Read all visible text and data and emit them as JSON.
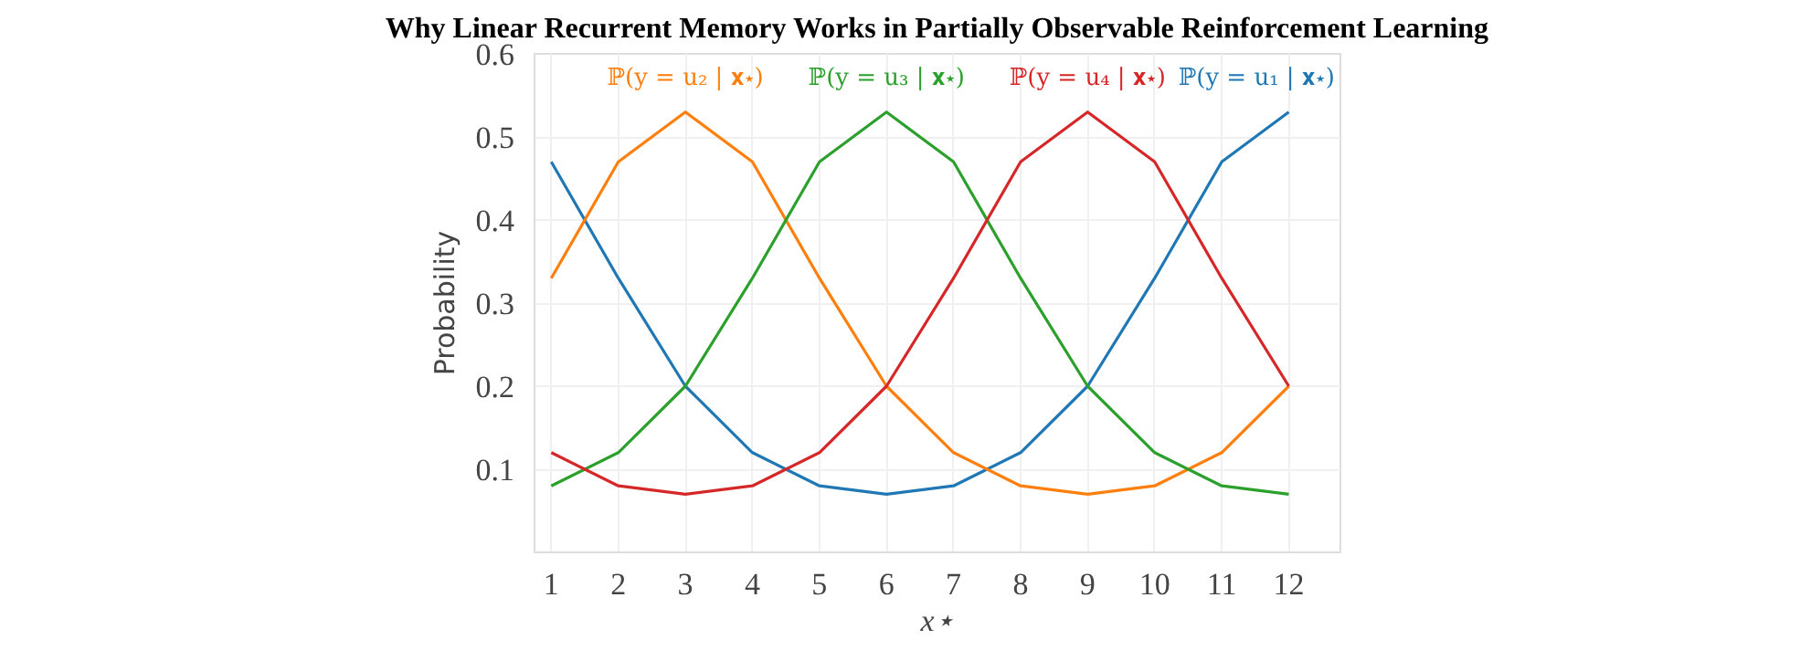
{
  "chart_data": {
    "type": "line",
    "title": "Why Linear Recurrent Memory Works in Partially Observable Reinforcement Learning",
    "xlabel": "x⋆",
    "ylabel": "Probability",
    "x": [
      1,
      2,
      3,
      4,
      5,
      6,
      7,
      8,
      9,
      10,
      11,
      12
    ],
    "xlim": [
      0.75,
      12.77
    ],
    "ylim": [
      0,
      0.6
    ],
    "xticks": [
      1,
      2,
      3,
      4,
      5,
      6,
      7,
      8,
      9,
      10,
      11,
      12
    ],
    "yticks": [
      0.1,
      0.2,
      0.3,
      0.4,
      0.5,
      0.6
    ],
    "grid": true,
    "marker": "none",
    "line_style": "solid",
    "series": [
      {
        "name": "ℙ(y = u₁ | 𝐱⋆)",
        "color": "#1f77b4",
        "values": [
          0.47,
          0.33,
          0.2,
          0.12,
          0.08,
          0.07,
          0.08,
          0.12,
          0.2,
          0.33,
          0.47,
          0.53
        ]
      },
      {
        "name": "ℙ(y = u₂ | 𝐱⋆)",
        "color": "#ff7f0e",
        "values": [
          0.33,
          0.47,
          0.53,
          0.47,
          0.33,
          0.2,
          0.12,
          0.08,
          0.07,
          0.08,
          0.12,
          0.2
        ]
      },
      {
        "name": "ℙ(y = u₃ | 𝐱⋆)",
        "color": "#2ca02c",
        "values": [
          0.08,
          0.12,
          0.2,
          0.33,
          0.47,
          0.53,
          0.47,
          0.33,
          0.2,
          0.12,
          0.08,
          0.07
        ]
      },
      {
        "name": "ℙ(y = u₄ | 𝐱⋆)",
        "color": "#d62728",
        "values": [
          0.12,
          0.08,
          0.07,
          0.08,
          0.12,
          0.2,
          0.33,
          0.47,
          0.53,
          0.47,
          0.33,
          0.2
        ]
      }
    ]
  }
}
